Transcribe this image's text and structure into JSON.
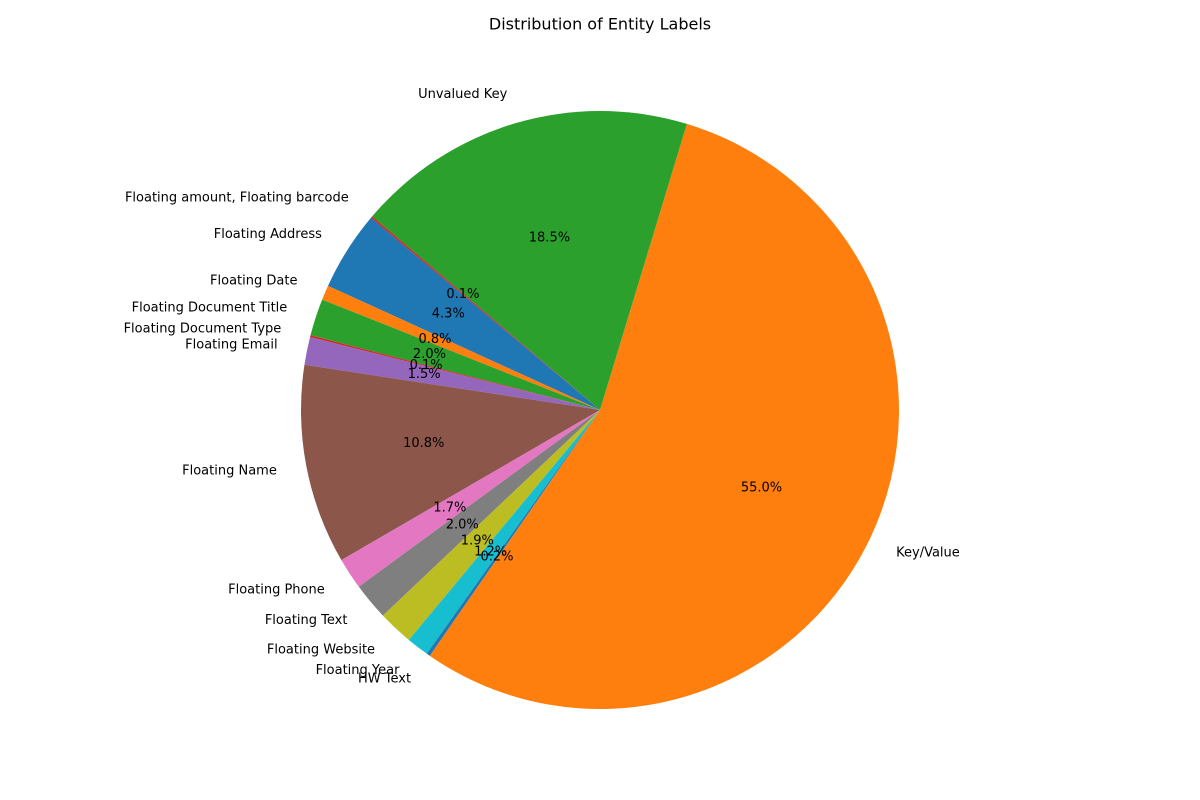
{
  "chart_data": {
    "type": "pie",
    "title": "Distribution of Entity Labels",
    "start_angle": 140,
    "categories": [
      "Floating Address",
      "Floating Date",
      "Floating Document Title",
      "Floating Document Type",
      "Floating Email",
      "Floating Name",
      "Floating Phone",
      "Floating Text",
      "Floating Website",
      "Floating Year",
      "HW Text",
      "Key/Value",
      "Unvalued Key",
      "Floating amount, Floating barcode"
    ],
    "values": [
      4.3,
      0.8,
      2.0,
      0.1,
      1.5,
      10.8,
      1.7,
      2.0,
      1.9,
      1.2,
      0.2,
      55.0,
      18.5,
      0.1
    ],
    "value_labels": [
      "4.3%",
      "0.8%",
      "2.0%",
      "0.1%",
      "1.5%",
      "10.8%",
      "1.7%",
      "2.0%",
      "1.9%",
      "1.2%",
      "0.2%",
      "55.0%",
      "18.5%",
      "0.1%"
    ],
    "colors": [
      "#1f77b4",
      "#ff7f0e",
      "#2ca02c",
      "#d62728",
      "#9467bd",
      "#8c564b",
      "#e377c2",
      "#7f7f7f",
      "#bcbd22",
      "#17becf",
      "#1f77b4",
      "#ff7f0e",
      "#2ca02c",
      "#d62728"
    ]
  }
}
